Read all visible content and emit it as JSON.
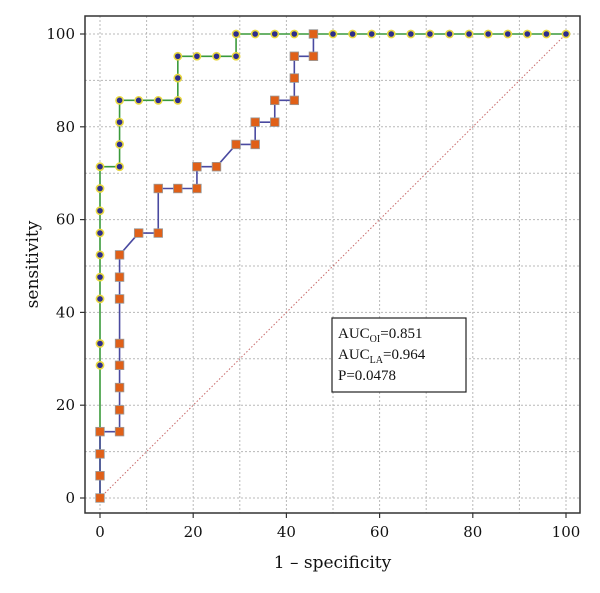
{
  "chart_data": {
    "type": "line",
    "xlabel": "1 – specificity",
    "ylabel": "sensitivity",
    "xlim": [
      0,
      100
    ],
    "ylim": [
      0,
      100
    ],
    "x_ticks": [
      "0",
      "20",
      "40",
      "60",
      "80",
      "100"
    ],
    "y_ticks": [
      "0",
      "20",
      "40",
      "60",
      "80",
      "100"
    ],
    "grid": true,
    "series": [
      {
        "line_color": "#3a9a3a",
        "marker": "circle",
        "marker_fill": "#2c2c8c",
        "marker_outline": "#e8d840",
        "points": [
          [
            0,
            0
          ],
          [
            0,
            4.8
          ],
          [
            0,
            9.5
          ],
          [
            0,
            14.3
          ],
          [
            0,
            28.6
          ],
          [
            0,
            33.3
          ],
          [
            0,
            42.9
          ],
          [
            0,
            47.6
          ],
          [
            0,
            52.4
          ],
          [
            0,
            57.1
          ],
          [
            0,
            61.9
          ],
          [
            0,
            66.7
          ],
          [
            0,
            71.4
          ],
          [
            4.2,
            71.4
          ],
          [
            4.2,
            76.2
          ],
          [
            4.2,
            81.0
          ],
          [
            4.2,
            85.7
          ],
          [
            8.3,
            85.7
          ],
          [
            12.5,
            85.7
          ],
          [
            16.7,
            85.7
          ],
          [
            16.7,
            90.5
          ],
          [
            16.7,
            95.2
          ],
          [
            20.8,
            95.2
          ],
          [
            25.0,
            95.2
          ],
          [
            29.2,
            95.2
          ],
          [
            29.2,
            100
          ],
          [
            33.3,
            100
          ],
          [
            37.5,
            100
          ],
          [
            41.7,
            100
          ],
          [
            45.8,
            100
          ],
          [
            50.0,
            100
          ],
          [
            54.2,
            100
          ],
          [
            58.3,
            100
          ],
          [
            62.5,
            100
          ],
          [
            66.7,
            100
          ],
          [
            70.8,
            100
          ],
          [
            75.0,
            100
          ],
          [
            79.2,
            100
          ],
          [
            83.3,
            100
          ],
          [
            87.5,
            100
          ],
          [
            91.7,
            100
          ],
          [
            95.8,
            100
          ],
          [
            100,
            100
          ]
        ]
      },
      {
        "line_color": "#4a4aa0",
        "marker": "square",
        "marker_fill": "#e06018",
        "marker_outline": "#9a9a9a",
        "points": [
          [
            0,
            0
          ],
          [
            0,
            4.8
          ],
          [
            0,
            9.5
          ],
          [
            0,
            14.3
          ],
          [
            4.2,
            14.3
          ],
          [
            4.2,
            19.0
          ],
          [
            4.2,
            23.8
          ],
          [
            4.2,
            28.6
          ],
          [
            4.2,
            33.3
          ],
          [
            4.2,
            42.9
          ],
          [
            4.2,
            47.6
          ],
          [
            4.2,
            52.4
          ],
          [
            8.3,
            57.1
          ],
          [
            12.5,
            57.1
          ],
          [
            12.5,
            66.7
          ],
          [
            16.7,
            66.7
          ],
          [
            20.8,
            66.7
          ],
          [
            20.8,
            71.4
          ],
          [
            25.0,
            71.4
          ],
          [
            29.2,
            76.2
          ],
          [
            33.3,
            76.2
          ],
          [
            33.3,
            81.0
          ],
          [
            37.5,
            81.0
          ],
          [
            37.5,
            85.7
          ],
          [
            41.7,
            85.7
          ],
          [
            41.7,
            90.5
          ],
          [
            41.7,
            95.2
          ],
          [
            45.8,
            95.2
          ],
          [
            45.8,
            100
          ]
        ]
      }
    ],
    "reference_line": {
      "from": [
        0,
        0
      ],
      "to": [
        100,
        100
      ],
      "color": "#c86a6a",
      "style": "dotted"
    },
    "legend_box": {
      "placement": "center-right",
      "lines": [
        {
          "main": "AUC",
          "sub": "OI",
          "rest": "=0.851"
        },
        {
          "main": "AUC",
          "sub": "LA",
          "rest": "=0.964"
        },
        {
          "main": "P=0.0478",
          "sub": "",
          "rest": ""
        }
      ]
    }
  }
}
